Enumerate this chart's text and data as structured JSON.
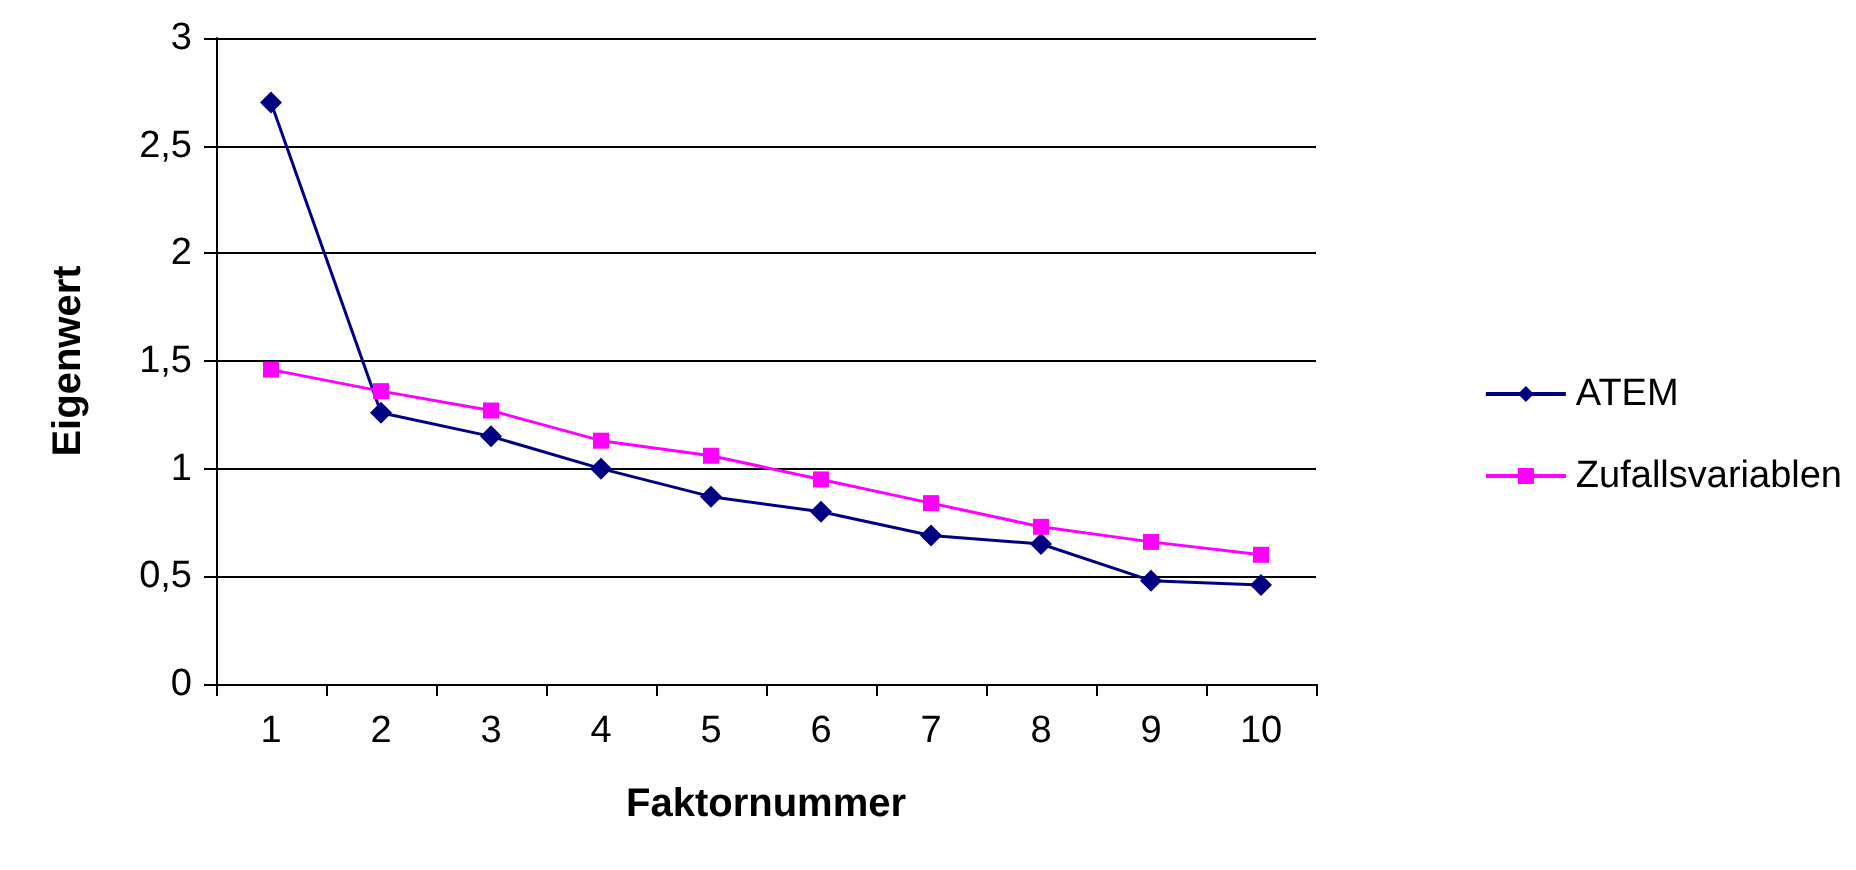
{
  "chart_data": {
    "type": "line",
    "xlabel": "Faktornummer",
    "ylabel": "Eigenwert",
    "categories": [
      "1",
      "2",
      "3",
      "4",
      "5",
      "6",
      "7",
      "8",
      "9",
      "10"
    ],
    "series": [
      {
        "name": "ATEM",
        "color": "#000080",
        "marker": "diamond",
        "values": [
          2.7,
          1.26,
          1.15,
          1.0,
          0.87,
          0.8,
          0.69,
          0.65,
          0.48,
          0.46
        ]
      },
      {
        "name": "Zufallsvariablen",
        "color": "#ff00ff",
        "marker": "square",
        "values": [
          1.46,
          1.36,
          1.27,
          1.13,
          1.06,
          0.95,
          0.84,
          0.73,
          0.66,
          0.6
        ]
      }
    ],
    "ylim": [
      0,
      3
    ],
    "yticks": [
      0,
      {
        "value": 0.5,
        "label": "0,5"
      },
      1,
      {
        "value": 1.5,
        "label": "1,5"
      },
      2,
      {
        "value": 2.5,
        "label": "2,5"
      },
      3
    ],
    "grid": "y",
    "legend": "right",
    "line_style": "solid"
  }
}
